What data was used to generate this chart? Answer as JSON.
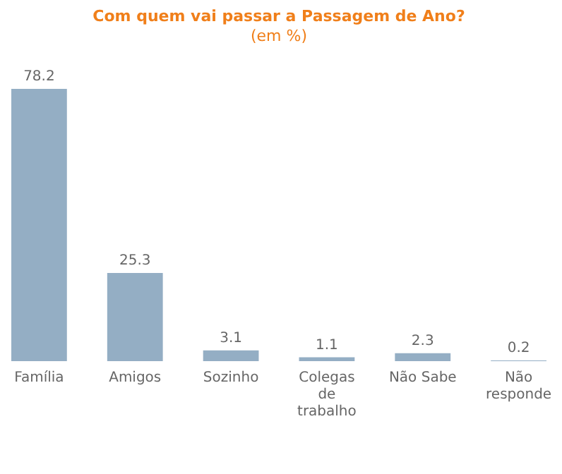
{
  "chart_data": {
    "type": "bar",
    "title": "Com quem vai passar a Passagem de Ano?",
    "subtitle": "(em %)",
    "categories": [
      "Família",
      "Amigos",
      "Sozinho",
      "Colegas\nde\ntrabalho",
      "Não Sabe",
      "Não\nresponde"
    ],
    "values": [
      78.2,
      25.3,
      3.1,
      1.1,
      2.3,
      0.2
    ],
    "color": "#94aec4",
    "data_labels": true
  }
}
